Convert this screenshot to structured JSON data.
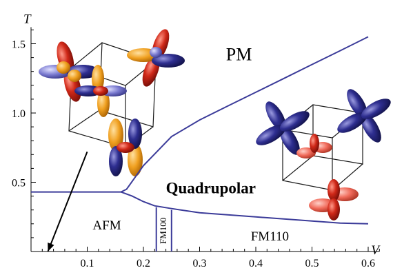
{
  "chart_data": {
    "type": "line",
    "title": "",
    "xlabel": "V",
    "ylabel": "T",
    "xlim": [
      0.0,
      0.62
    ],
    "ylim": [
      0.0,
      1.62
    ],
    "x_ticks": [
      0.1,
      0.2,
      0.3,
      0.4,
      0.5,
      0.6
    ],
    "x_tick_labels": [
      "0.1",
      "0.2",
      "0.3",
      "0.4",
      "0.5",
      "0.6"
    ],
    "y_ticks": [
      0.5,
      1.0,
      1.5
    ],
    "y_tick_labels": [
      "0.5",
      "1.0",
      "1.5"
    ],
    "grid": false,
    "series": [
      {
        "x": [
          0.0,
          0.16,
          0.17,
          0.2,
          0.25,
          0.3,
          0.35,
          0.4,
          0.45,
          0.5,
          0.55,
          0.6
        ],
        "y": [
          0.43,
          0.43,
          0.45,
          0.62,
          0.83,
          0.95,
          1.05,
          1.15,
          1.25,
          1.35,
          1.45,
          1.55
        ]
      },
      {
        "x": [
          0.16,
          0.18,
          0.2,
          0.22,
          0.25,
          0.3,
          0.35,
          0.4,
          0.45,
          0.5,
          0.55,
          0.6
        ],
        "y": [
          0.43,
          0.4,
          0.36,
          0.33,
          0.31,
          0.28,
          0.265,
          0.25,
          0.235,
          0.22,
          0.205,
          0.2
        ]
      },
      {
        "x": [
          0.223,
          0.223
        ],
        "y": [
          0.0,
          0.32
        ]
      },
      {
        "x": [
          0.25,
          0.25
        ],
        "y": [
          0.0,
          0.3
        ]
      }
    ],
    "annotations": [
      {
        "text": "PM",
        "x": 0.37,
        "y": 1.38,
        "style": "big"
      },
      {
        "text": "Quadrupolar",
        "x": 0.32,
        "y": 0.42,
        "style": "bold"
      },
      {
        "text": "AFM",
        "x": 0.135,
        "y": 0.16,
        "style": "normal"
      },
      {
        "text": "FM100",
        "x": 0.237,
        "y": 0.15,
        "style": "small-vertical"
      },
      {
        "text": "FM110",
        "x": 0.425,
        "y": 0.08,
        "style": "normal"
      }
    ],
    "arrow": {
      "from": [
        0.1,
        0.72
      ],
      "to": [
        0.03,
        0.0
      ]
    }
  },
  "colors": {
    "boundary": "#3b3b99",
    "orbital_red": "#cc2a1a",
    "orbital_orange": "#f0a020",
    "orbital_blue": "#2a2a8a",
    "orbital_light_red": "#f06a5a"
  },
  "icons": [
    "orbital-cluster-afm",
    "orbital-cluster-quadrupolar"
  ]
}
